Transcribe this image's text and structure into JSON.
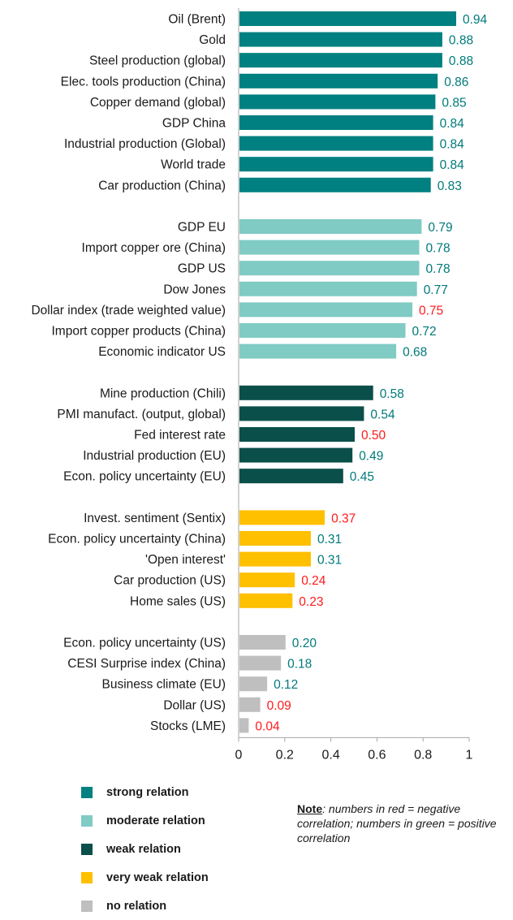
{
  "chart_data": {
    "type": "bar",
    "orientation": "horizontal",
    "xlim": [
      0,
      1
    ],
    "xticks": [
      "0",
      "0.2",
      "0.4",
      "0.6",
      "0.8",
      "1"
    ],
    "groups": [
      {
        "relation": "strong",
        "items": [
          {
            "label": "Oil (Brent)",
            "value": 0.94,
            "value_label": "0.94",
            "sign": "positive"
          },
          {
            "label": "Gold",
            "value": 0.88,
            "value_label": "0.88",
            "sign": "positive"
          },
          {
            "label": "Steel production (global)",
            "value": 0.88,
            "value_label": "0.88",
            "sign": "positive"
          },
          {
            "label": "Elec. tools production (China)",
            "value": 0.86,
            "value_label": "0.86",
            "sign": "positive"
          },
          {
            "label": "Copper demand (global)",
            "value": 0.85,
            "value_label": "0.85",
            "sign": "positive"
          },
          {
            "label": "GDP China",
            "value": 0.84,
            "value_label": "0.84",
            "sign": "positive"
          },
          {
            "label": "Industrial production (Global)",
            "value": 0.84,
            "value_label": "0.84",
            "sign": "positive"
          },
          {
            "label": "World trade",
            "value": 0.84,
            "value_label": "0.84",
            "sign": "positive"
          },
          {
            "label": "Car production (China)",
            "value": 0.83,
            "value_label": "0.83",
            "sign": "positive"
          }
        ]
      },
      {
        "relation": "moderate",
        "items": [
          {
            "label": "GDP EU",
            "value": 0.79,
            "value_label": "0.79",
            "sign": "positive"
          },
          {
            "label": "Import copper ore (China)",
            "value": 0.78,
            "value_label": "0.78",
            "sign": "positive"
          },
          {
            "label": "GDP US",
            "value": 0.78,
            "value_label": "0.78",
            "sign": "positive"
          },
          {
            "label": "Dow Jones",
            "value": 0.77,
            "value_label": "0.77",
            "sign": "positive"
          },
          {
            "label": "Dollar index (trade weighted value)",
            "value": 0.75,
            "value_label": "0.75",
            "sign": "negative"
          },
          {
            "label": "Import copper products (China)",
            "value": 0.72,
            "value_label": "0.72",
            "sign": "positive"
          },
          {
            "label": "Economic indicator US",
            "value": 0.68,
            "value_label": "0.68",
            "sign": "positive"
          }
        ]
      },
      {
        "relation": "weak",
        "items": [
          {
            "label": "Mine production (Chili)",
            "value": 0.58,
            "value_label": "0.58",
            "sign": "positive"
          },
          {
            "label": "PMI manufact. (output, global)",
            "value": 0.54,
            "value_label": "0.54",
            "sign": "positive"
          },
          {
            "label": "Fed interest rate",
            "value": 0.5,
            "value_label": "0.50",
            "sign": "negative"
          },
          {
            "label": "Industrial production (EU)",
            "value": 0.49,
            "value_label": "0.49",
            "sign": "positive"
          },
          {
            "label": "Econ. policy uncertainty (EU)",
            "value": 0.45,
            "value_label": "0.45",
            "sign": "positive"
          }
        ]
      },
      {
        "relation": "very weak",
        "items": [
          {
            "label": "Invest. sentiment (Sentix)",
            "value": 0.37,
            "value_label": "0.37",
            "sign": "negative"
          },
          {
            "label": "Econ. policy uncertainty (China)",
            "value": 0.31,
            "value_label": "0.31",
            "sign": "positive"
          },
          {
            "label": "'Open interest'",
            "value": 0.31,
            "value_label": "0.31",
            "sign": "positive"
          },
          {
            "label": "Car production (US)",
            "value": 0.24,
            "value_label": "0.24",
            "sign": "negative"
          },
          {
            "label": "Home sales (US)",
            "value": 0.23,
            "value_label": "0.23",
            "sign": "negative"
          }
        ]
      },
      {
        "relation": "none",
        "items": [
          {
            "label": "Econ. policy uncertainty (US)",
            "value": 0.2,
            "value_label": "0.20",
            "sign": "positive"
          },
          {
            "label": "CESI Surprise index (China)",
            "value": 0.18,
            "value_label": "0.18",
            "sign": "positive"
          },
          {
            "label": "Business climate (EU)",
            "value": 0.12,
            "value_label": "0.12",
            "sign": "positive"
          },
          {
            "label": "Dollar (US)",
            "value": 0.09,
            "value_label": "0.09",
            "sign": "negative"
          },
          {
            "label": "Stocks (LME)",
            "value": 0.04,
            "value_label": "0.04",
            "sign": "negative"
          }
        ]
      }
    ]
  },
  "colors": {
    "strong": "#008080",
    "moderate": "#80cbc4",
    "weak": "#0b4f4a",
    "very weak": "#ffc000",
    "none": "#bfbfbf",
    "positive_text": "#007a7a",
    "negative_text": "#ff1a1a",
    "axis": "#a6a6a6"
  },
  "legend": {
    "items": [
      {
        "key": "strong",
        "label": "strong relation"
      },
      {
        "key": "moderate",
        "label": "moderate relation"
      },
      {
        "key": "weak",
        "label": "weak relation"
      },
      {
        "key": "very weak",
        "label": "very weak relation"
      },
      {
        "key": "none",
        "label": "no relation"
      }
    ]
  },
  "note": {
    "title": "Note",
    "text": ": numbers in red = negative correlation; numbers in green = positive correlation"
  }
}
